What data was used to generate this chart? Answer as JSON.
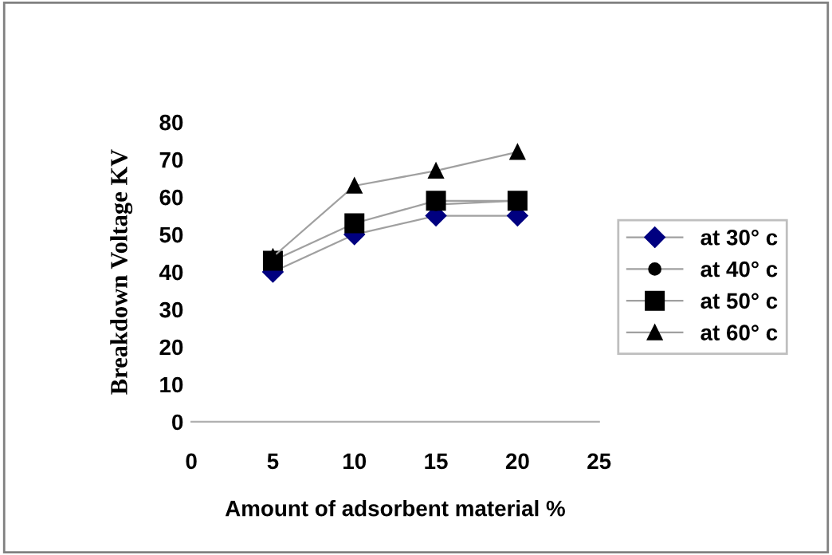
{
  "chart_data": {
    "type": "line",
    "xlabel": "Amount of adsorbent material %",
    "ylabel": "Breakdown Voltage KV",
    "x": [
      5,
      10,
      15,
      20
    ],
    "series": [
      {
        "name": "at 30° c",
        "color": "#000080",
        "marker": "diamond",
        "values": [
          40,
          50,
          55,
          55
        ]
      },
      {
        "name": "at 40° c",
        "color": "#000000",
        "marker": "circle",
        "values": [
          null,
          null,
          58,
          59
        ]
      },
      {
        "name": "at 50° c",
        "color": "#000000",
        "marker": "square",
        "values": [
          43,
          53,
          59,
          59
        ]
      },
      {
        "name": "at 60° c",
        "color": "#000000",
        "marker": "triangle",
        "values": [
          44,
          63,
          67,
          72
        ]
      }
    ],
    "xlim": [
      0,
      25
    ],
    "xticks": [
      0,
      5,
      10,
      15,
      20,
      25
    ],
    "ylim": [
      0,
      80
    ],
    "yticks": [
      0,
      10,
      20,
      30,
      40,
      50,
      60,
      70,
      80
    ],
    "grid": false,
    "legend": "right",
    "line_style": "solid"
  }
}
